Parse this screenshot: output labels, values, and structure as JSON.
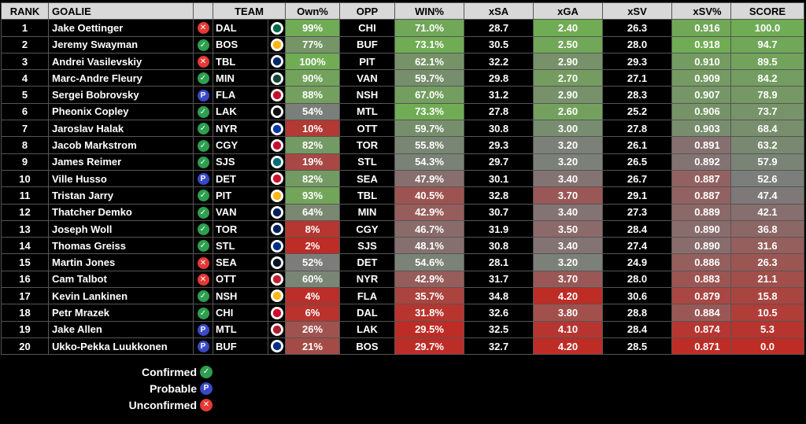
{
  "headers": {
    "rank": "RANK",
    "goalie": "GOALIE",
    "team": "TEAM",
    "own": "Own%",
    "opp": "OPP",
    "win": "WIN%",
    "xsa": "xSA",
    "xga": "xGA",
    "xsv": "xSV",
    "xsvpct": "xSV%",
    "score": "SCORE"
  },
  "status_icons": {
    "confirmed": {
      "glyph": "✓",
      "color": "#2e9e4f"
    },
    "probable": {
      "glyph": "P",
      "color": "#3949c6"
    },
    "unconfirmed": {
      "glyph": "✕",
      "color": "#e53935"
    }
  },
  "team_logo_colors": {
    "DAL": "#006847",
    "BOS": "#fcb514",
    "TBL": "#002868",
    "MIN": "#154734",
    "FLA": "#c8102e",
    "LAK": "#111111",
    "NYR": "#0038a8",
    "CGY": "#c8102e",
    "SJS": "#006d75",
    "DET": "#ce1126",
    "PIT": "#fcb514",
    "VAN": "#00205b",
    "TOR": "#00205b",
    "STL": "#002f87",
    "SEA": "#001628",
    "OTT": "#c52032",
    "NSH": "#ffb81c",
    "CHI": "#cf0a2c",
    "MTL": "#af1e2d",
    "BUF": "#003087"
  },
  "chart_data": {
    "type": "table",
    "title": "",
    "columns": [
      "RANK",
      "GOALIE",
      "TEAM",
      "Own%",
      "OPP",
      "WIN%",
      "xSA",
      "xGA",
      "xSV",
      "xSV%",
      "SCORE"
    ],
    "rows": [
      {
        "rank": "1",
        "goalie": "Jake Oettinger",
        "status": "unconfirmed",
        "team": "DAL",
        "own": "99%",
        "opp": "CHI",
        "win": "71.0%",
        "xsa": "28.7",
        "xga": "2.40",
        "xsv": "26.3",
        "xsvpct": "0.916",
        "score": "100.0"
      },
      {
        "rank": "2",
        "goalie": "Jeremy Swayman",
        "status": "confirmed",
        "team": "BOS",
        "own": "77%",
        "opp": "BUF",
        "win": "73.1%",
        "xsa": "30.5",
        "xga": "2.50",
        "xsv": "28.0",
        "xsvpct": "0.918",
        "score": "94.7"
      },
      {
        "rank": "3",
        "goalie": "Andrei Vasilevskiy",
        "status": "unconfirmed",
        "team": "TBL",
        "own": "100%",
        "opp": "PIT",
        "win": "62.1%",
        "xsa": "32.2",
        "xga": "2.90",
        "xsv": "29.3",
        "xsvpct": "0.910",
        "score": "89.5"
      },
      {
        "rank": "4",
        "goalie": "Marc-Andre Fleury",
        "status": "confirmed",
        "team": "MIN",
        "own": "90%",
        "opp": "VAN",
        "win": "59.7%",
        "xsa": "29.8",
        "xga": "2.70",
        "xsv": "27.1",
        "xsvpct": "0.909",
        "score": "84.2"
      },
      {
        "rank": "5",
        "goalie": "Sergei Bobrovsky",
        "status": "probable",
        "team": "FLA",
        "own": "88%",
        "opp": "NSH",
        "win": "67.0%",
        "xsa": "31.2",
        "xga": "2.90",
        "xsv": "28.3",
        "xsvpct": "0.907",
        "score": "78.9"
      },
      {
        "rank": "6",
        "goalie": "Pheonix Copley",
        "status": "confirmed",
        "team": "LAK",
        "own": "54%",
        "opp": "MTL",
        "win": "73.3%",
        "xsa": "27.8",
        "xga": "2.60",
        "xsv": "25.2",
        "xsvpct": "0.906",
        "score": "73.7"
      },
      {
        "rank": "7",
        "goalie": "Jaroslav Halak",
        "status": "confirmed",
        "team": "NYR",
        "own": "10%",
        "opp": "OTT",
        "win": "59.7%",
        "xsa": "30.8",
        "xga": "3.00",
        "xsv": "27.8",
        "xsvpct": "0.903",
        "score": "68.4"
      },
      {
        "rank": "8",
        "goalie": "Jacob Markstrom",
        "status": "confirmed",
        "team": "CGY",
        "own": "82%",
        "opp": "TOR",
        "win": "55.8%",
        "xsa": "29.3",
        "xga": "3.20",
        "xsv": "26.1",
        "xsvpct": "0.891",
        "score": "63.2"
      },
      {
        "rank": "9",
        "goalie": "James Reimer",
        "status": "confirmed",
        "team": "SJS",
        "own": "19%",
        "opp": "STL",
        "win": "54.3%",
        "xsa": "29.7",
        "xga": "3.20",
        "xsv": "26.5",
        "xsvpct": "0.892",
        "score": "57.9"
      },
      {
        "rank": "10",
        "goalie": "Ville Husso",
        "status": "probable",
        "team": "DET",
        "own": "82%",
        "opp": "SEA",
        "win": "47.9%",
        "xsa": "30.1",
        "xga": "3.40",
        "xsv": "26.7",
        "xsvpct": "0.887",
        "score": "52.6"
      },
      {
        "rank": "11",
        "goalie": "Tristan Jarry",
        "status": "confirmed",
        "team": "PIT",
        "own": "93%",
        "opp": "TBL",
        "win": "40.5%",
        "xsa": "32.8",
        "xga": "3.70",
        "xsv": "29.1",
        "xsvpct": "0.887",
        "score": "47.4"
      },
      {
        "rank": "12",
        "goalie": "Thatcher Demko",
        "status": "confirmed",
        "team": "VAN",
        "own": "64%",
        "opp": "MIN",
        "win": "42.9%",
        "xsa": "30.7",
        "xga": "3.40",
        "xsv": "27.3",
        "xsvpct": "0.889",
        "score": "42.1"
      },
      {
        "rank": "13",
        "goalie": "Joseph Woll",
        "status": "confirmed",
        "team": "TOR",
        "own": "8%",
        "opp": "CGY",
        "win": "46.7%",
        "xsa": "31.9",
        "xga": "3.50",
        "xsv": "28.4",
        "xsvpct": "0.890",
        "score": "36.8"
      },
      {
        "rank": "14",
        "goalie": "Thomas Greiss",
        "status": "confirmed",
        "team": "STL",
        "own": "2%",
        "opp": "SJS",
        "win": "48.1%",
        "xsa": "30.8",
        "xga": "3.40",
        "xsv": "27.4",
        "xsvpct": "0.890",
        "score": "31.6"
      },
      {
        "rank": "15",
        "goalie": "Martin Jones",
        "status": "unconfirmed",
        "team": "SEA",
        "own": "52%",
        "opp": "DET",
        "win": "54.6%",
        "xsa": "28.1",
        "xga": "3.20",
        "xsv": "24.9",
        "xsvpct": "0.886",
        "score": "26.3"
      },
      {
        "rank": "16",
        "goalie": "Cam Talbot",
        "status": "unconfirmed",
        "team": "OTT",
        "own": "60%",
        "opp": "NYR",
        "win": "42.9%",
        "xsa": "31.7",
        "xga": "3.70",
        "xsv": "28.0",
        "xsvpct": "0.883",
        "score": "21.1"
      },
      {
        "rank": "17",
        "goalie": "Kevin Lankinen",
        "status": "confirmed",
        "team": "NSH",
        "own": "4%",
        "opp": "FLA",
        "win": "35.7%",
        "xsa": "34.8",
        "xga": "4.20",
        "xsv": "30.6",
        "xsvpct": "0.879",
        "score": "15.8"
      },
      {
        "rank": "18",
        "goalie": "Petr Mrazek",
        "status": "confirmed",
        "team": "CHI",
        "own": "6%",
        "opp": "DAL",
        "win": "31.8%",
        "xsa": "32.6",
        "xga": "3.80",
        "xsv": "28.8",
        "xsvpct": "0.884",
        "score": "10.5"
      },
      {
        "rank": "19",
        "goalie": "Jake Allen",
        "status": "probable",
        "team": "MTL",
        "own": "26%",
        "opp": "LAK",
        "win": "29.5%",
        "xsa": "32.5",
        "xga": "4.10",
        "xsv": "28.4",
        "xsvpct": "0.874",
        "score": "5.3"
      },
      {
        "rank": "20",
        "goalie": "Ukko-Pekka Luukkonen",
        "status": "probable",
        "team": "BUF",
        "own": "21%",
        "opp": "BOS",
        "win": "29.7%",
        "xsa": "32.7",
        "xga": "4.20",
        "xsv": "28.5",
        "xsvpct": "0.871",
        "score": "0.0"
      }
    ]
  },
  "legend": [
    {
      "label": "Confirmed",
      "status": "confirmed"
    },
    {
      "label": "Probable",
      "status": "probable"
    },
    {
      "label": "Unconfirmed",
      "status": "unconfirmed"
    }
  ]
}
